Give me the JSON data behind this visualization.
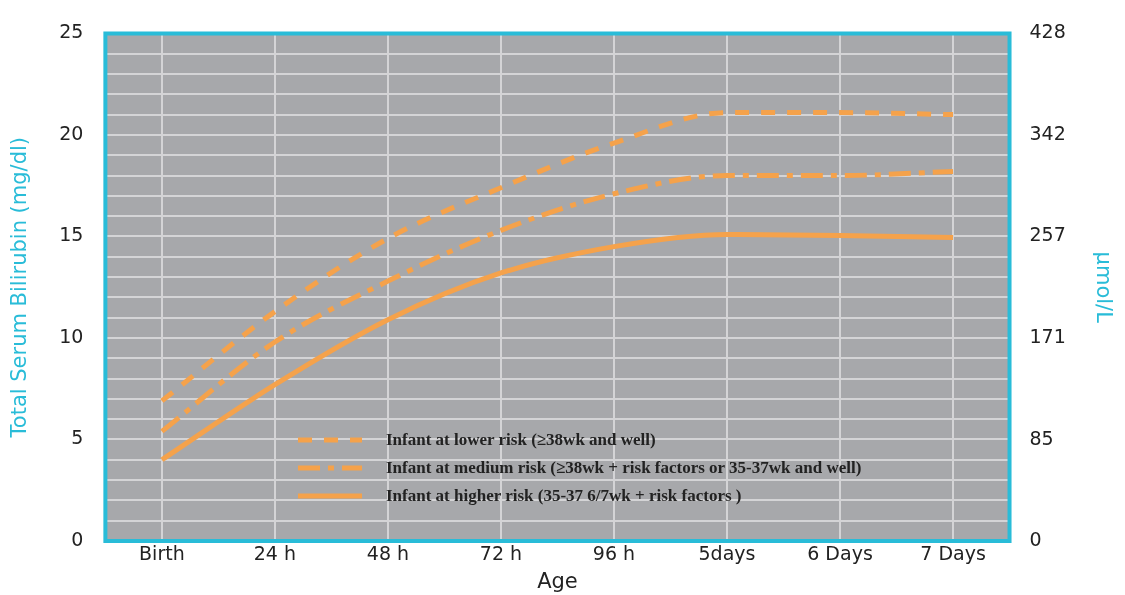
{
  "chart_data": {
    "type": "line",
    "xlabel": "Age",
    "ylabel": "Total Serum Bilirubin (mg/dl)",
    "y2label": "μmol/L",
    "categories": [
      "Birth",
      "24 h",
      "48 h",
      "72 h",
      "96 h",
      "5days",
      "6 Days",
      "7 Days"
    ],
    "ylim": [
      0,
      25
    ],
    "yticks": [
      0,
      {
        "value": 1,
        "label": null
      },
      {
        "value": 2,
        "label": null
      },
      {
        "value": 3,
        "label": null
      },
      {
        "value": 4,
        "label": null
      },
      5,
      {
        "value": 6,
        "label": null
      },
      {
        "value": 7,
        "label": null
      },
      {
        "value": 8,
        "label": null
      },
      {
        "value": 9,
        "label": null
      },
      10,
      {
        "value": 11,
        "label": null
      },
      {
        "value": 12,
        "label": null
      },
      {
        "value": 13,
        "label": null
      },
      {
        "value": 14,
        "label": null
      },
      15,
      {
        "value": 16,
        "label": null
      },
      {
        "value": 17,
        "label": null
      },
      {
        "value": 18,
        "label": null
      },
      {
        "value": 19,
        "label": null
      },
      20,
      {
        "value": 21,
        "label": null
      },
      {
        "value": 22,
        "label": null
      },
      {
        "value": 23,
        "label": null
      },
      {
        "value": 24,
        "label": null
      },
      25
    ],
    "y2lim": [
      0,
      428
    ],
    "y2ticks": [
      0,
      85,
      171,
      257,
      342,
      428
    ],
    "grid": true,
    "legend": "bottom",
    "marker": "none",
    "series": [
      {
        "name": "Infant at lower risk (≥38wk and well)",
        "color": "#f5a24b",
        "line_style": "dashed",
        "values": [
          6.9,
          11.3,
          14.9,
          17.4,
          19.6,
          21.1,
          21.1,
          21.0
        ]
      },
      {
        "name": "Infant at medium risk (≥38wk  + risk factors or 35-37wk and well)",
        "color": "#f5a24b",
        "line_style": "dashdot",
        "values": [
          5.4,
          9.8,
          12.8,
          15.3,
          17.1,
          18.0,
          18.0,
          18.2
        ]
      },
      {
        "name": "Infant at higher risk (35-37 6/7wk + risk factors )",
        "color": "#f5a24b",
        "line_style": "solid",
        "values": [
          4.0,
          7.7,
          10.9,
          13.2,
          14.5,
          15.1,
          15.05,
          14.95
        ]
      }
    ]
  }
}
